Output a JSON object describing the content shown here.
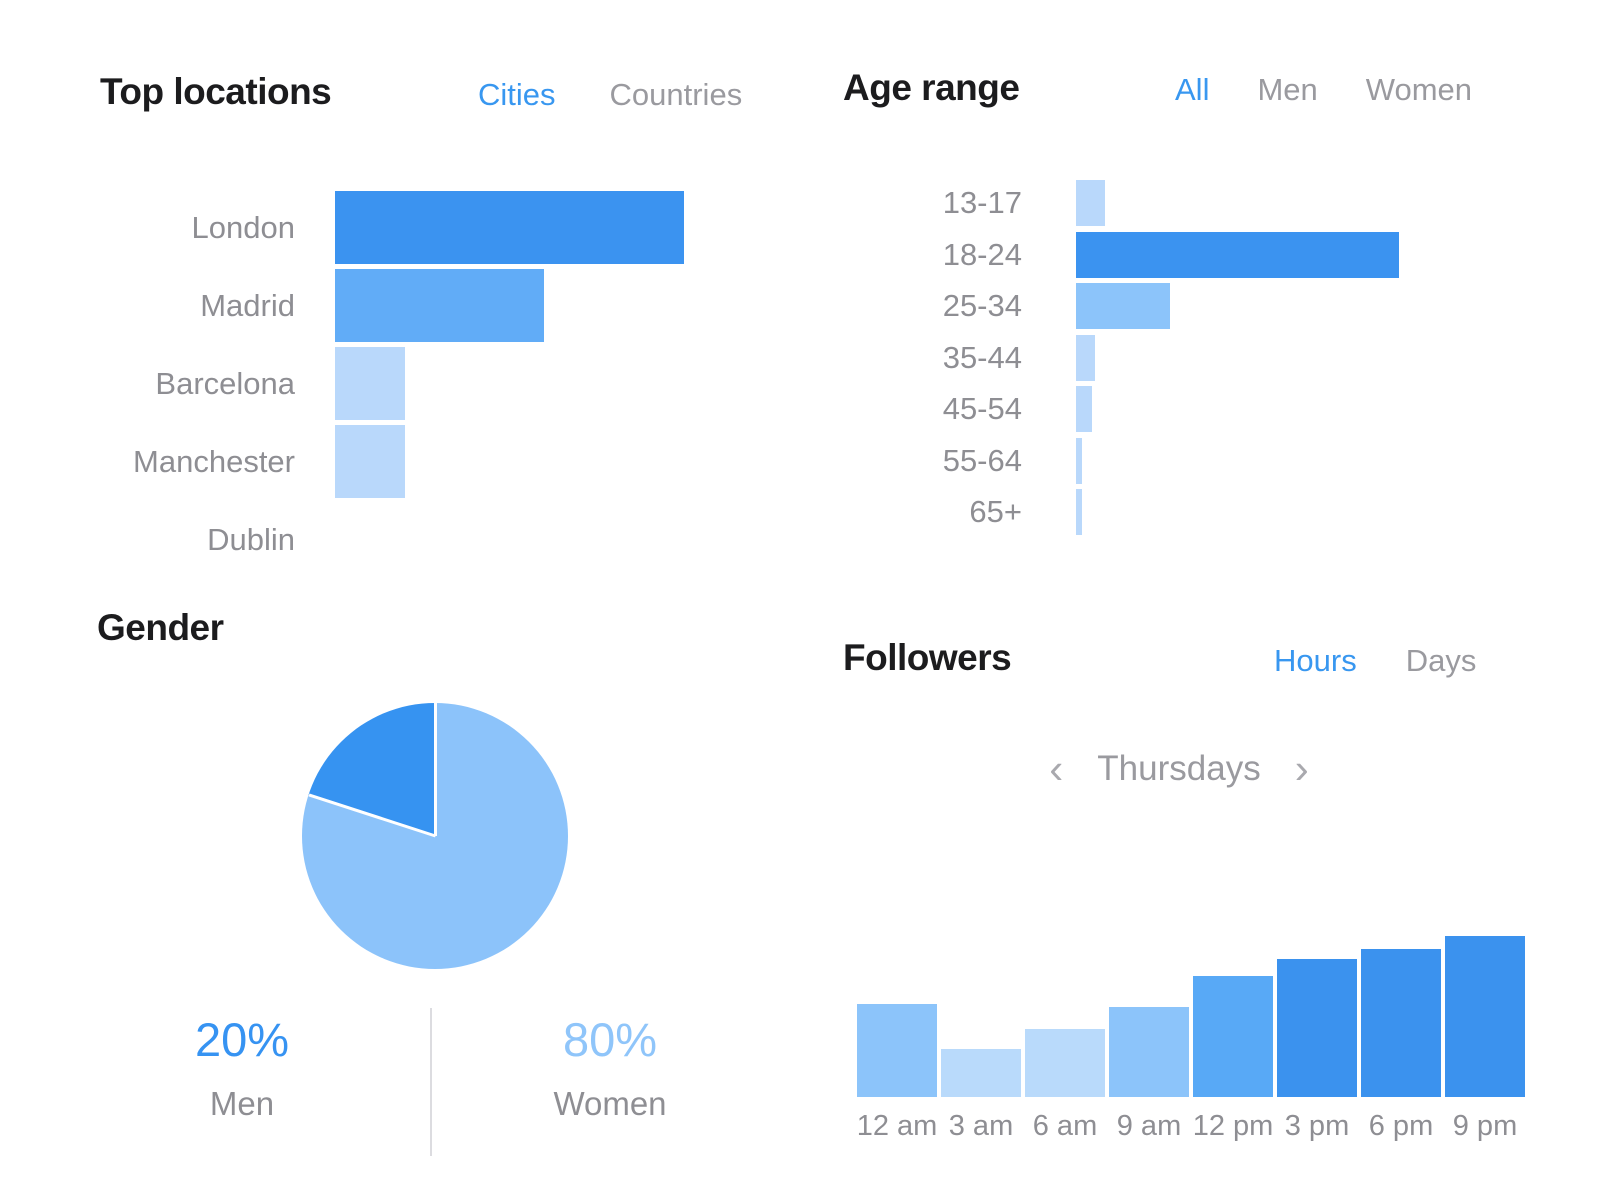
{
  "colors": {
    "accent_blue": "#3897f0",
    "inactive_tab_gray": "#9a9a9f",
    "axis_label_gray": "#8e8e93",
    "title_black": "#1c1c1e",
    "divider_gray": "#dcdce0",
    "bar_dark_blue": "#3b93f0",
    "bar_medium_blue": "#61acf7",
    "bar_medium_light_blue": "#8cc4fa",
    "bar_light_blue": "#b9d8fb"
  },
  "panels": {
    "top_locations": {
      "title": "Top locations",
      "tabs": [
        {
          "label": "Cities",
          "active": true
        },
        {
          "label": "Countries",
          "active": false
        }
      ]
    },
    "age_range": {
      "title": "Age range",
      "tabs": [
        {
          "label": "All",
          "active": true
        },
        {
          "label": "Men",
          "active": false
        },
        {
          "label": "Women",
          "active": false
        }
      ]
    },
    "gender": {
      "title": "Gender",
      "stats": [
        {
          "percent": "20%",
          "label": "Men",
          "color": "#3693f2"
        },
        {
          "percent": "80%",
          "label": "Women",
          "color": "#8fc5fa"
        }
      ]
    },
    "followers": {
      "title": "Followers",
      "tabs": [
        {
          "label": "Hours",
          "active": true
        },
        {
          "label": "Days",
          "active": false
        }
      ],
      "day_selector": {
        "prev_icon": "‹",
        "value": "Thursdays",
        "next_icon": "›"
      }
    }
  },
  "chart_data": [
    {
      "id": "top_locations",
      "type": "bar",
      "orientation": "horizontal",
      "title": "Top locations",
      "categories": [
        "London",
        "Madrid",
        "Barcelona",
        "Manchester",
        "Dublin"
      ],
      "values": [
        100,
        60,
        20,
        20,
        0
      ],
      "unit": "percent_of_max_bar",
      "bar_colors": [
        "#3b93f0",
        "#61acf7",
        "#b9d8fb",
        "#b9d8fb",
        "#b9d8fb"
      ],
      "xlabel": "",
      "ylabel": "",
      "grid": false,
      "legend": "none"
    },
    {
      "id": "age_range",
      "type": "bar",
      "orientation": "horizontal",
      "title": "Age range",
      "categories": [
        "13-17",
        "18-24",
        "25-34",
        "35-44",
        "45-54",
        "55-64",
        "65+"
      ],
      "values": [
        9,
        100,
        29,
        6,
        5,
        2,
        2
      ],
      "unit": "percent_of_max_bar",
      "bar_colors": [
        "#b9d8fb",
        "#3b93f0",
        "#8cc4fa",
        "#b9d8fb",
        "#b9d8fb",
        "#b9d8fb",
        "#b9d8fb"
      ],
      "xlabel": "",
      "ylabel": "",
      "grid": false,
      "legend": "none"
    },
    {
      "id": "gender",
      "type": "pie",
      "title": "Gender",
      "slices": [
        {
          "label": "Women",
          "value": 80,
          "color": "#8cc3fa"
        },
        {
          "label": "Men",
          "value": 20,
          "color": "#3693f1"
        }
      ],
      "start_angle_deg": 0,
      "direction": "clockwise",
      "legend": "below"
    },
    {
      "id": "followers",
      "type": "bar",
      "orientation": "vertical",
      "title": "Followers",
      "subtitle": "Thursdays",
      "categories": [
        "12 am",
        "3 am",
        "6 am",
        "9 am",
        "12 pm",
        "3 pm",
        "6 pm",
        "9 pm"
      ],
      "values": [
        58,
        30,
        42,
        56,
        75,
        86,
        92,
        100
      ],
      "unit": "percent_of_max_bar",
      "bar_colors": [
        "#8cc4fa",
        "#b9dafb",
        "#b9dafb",
        "#8cc4fa",
        "#58a9f6",
        "#3b92ee",
        "#3b92ee",
        "#3b92ee"
      ],
      "xlabel": "",
      "ylabel": "",
      "grid": false,
      "legend": "none"
    }
  ]
}
